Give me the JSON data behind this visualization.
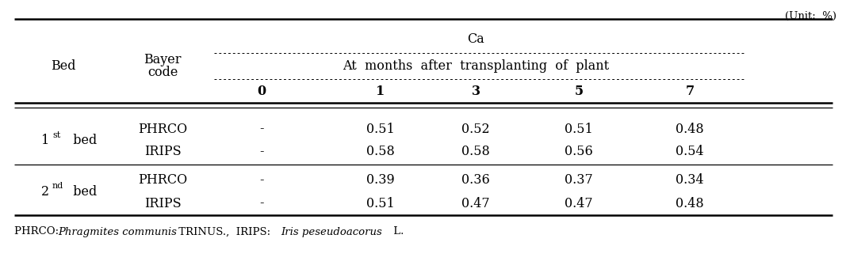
{
  "unit_text": "(Unit:  %)",
  "col_ca": "Ca",
  "col_months": "At  months  after  transplanting  of  plant",
  "col_months_values": [
    "0",
    "1",
    "3",
    "5",
    "7"
  ],
  "col_bed": "Bed",
  "col_bayer_line1": "Bayer",
  "col_bayer_line2": "code",
  "rows": [
    {
      "bayer": "PHRCO",
      "v0": "-",
      "v1": "0.51",
      "v3": "0.52",
      "v5": "0.51",
      "v7": "0.48"
    },
    {
      "bayer": "IRIPS",
      "v0": "-",
      "v1": "0.58",
      "v3": "0.58",
      "v5": "0.56",
      "v7": "0.54"
    },
    {
      "bayer": "PHRCO",
      "v0": "-",
      "v1": "0.39",
      "v3": "0.36",
      "v5": "0.37",
      "v7": "0.34"
    },
    {
      "bayer": "IRIPS",
      "v0": "-",
      "v1": "0.51",
      "v3": "0.47",
      "v5": "0.47",
      "v7": "0.48"
    }
  ],
  "footnote_normal1": "PHRCO: ",
  "footnote_italic1": "Phragmites communis",
  "footnote_normal2": " TRINUS.,  IRIPS: ",
  "footnote_italic2": "Iris peseudoacorus",
  "footnote_normal3": " L.",
  "bg_color": "#ffffff",
  "text_color": "#000000",
  "font_size": 11.5,
  "font_size_small": 9.5,
  "font_size_sup": 8.0
}
